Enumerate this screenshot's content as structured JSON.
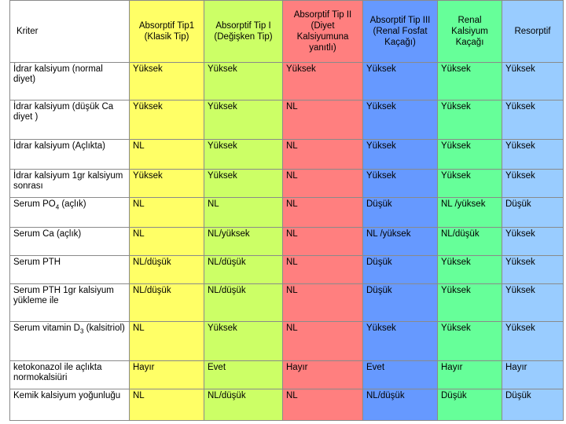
{
  "colors": {
    "col_yellow": "#ffff66",
    "col_lime": "#ccff66",
    "col_red": "#ff7f7f",
    "col_blue": "#6699ff",
    "col_green": "#66ff99",
    "col_lightblue": "#99ccff"
  },
  "headers": [
    "Kriter",
    "Absorptif Tip1 (Klasik Tip)",
    "Absorptif Tip I (Değişken Tip)",
    "Absorptif Tip II (Diyet Kalsiyumuna yanıtlı)",
    "Absorptif Tip III (Renal Fosfat Kaçağı)",
    "Renal Kalsiyum Kaçağı",
    "Resorptif"
  ],
  "rows": [
    {
      "label": "İdrar kalsiyum (normal diyet)",
      "values": [
        "Yüksek",
        "Yüksek",
        "Yüksek",
        "Yüksek",
        "Yüksek",
        "Yüksek"
      ]
    },
    {
      "label": "İdrar kalsiyum (düşük Ca diyet )",
      "values": [
        "Yüksek",
        "Yüksek",
        "NL",
        "Yüksek",
        "Yüksek",
        "Yüksek"
      ]
    },
    {
      "label": "İdrar kalsiyum (Açlıkta)",
      "values": [
        "NL",
        "Yüksek",
        "NL",
        "Yüksek",
        "Yüksek",
        "Yüksek"
      ]
    },
    {
      "label": "İdrar kalsiyum 1gr kalsiyum sonrası",
      "values": [
        "Yüksek",
        "Yüksek",
        "NL",
        "Yüksek",
        "Yüksek",
        "Yüksek"
      ]
    },
    {
      "label": "Serum PO",
      "label_sub": "4",
      "label_tail": " (açlık)",
      "values": [
        "NL",
        "NL",
        "NL",
        "Düşük",
        "NL /yüksek",
        "Düşük"
      ]
    },
    {
      "label": "Serum Ca (açlık)",
      "values": [
        "NL",
        "NL/yüksek",
        "NL",
        "NL /yüksek",
        "NL/düşük",
        "Yüksek"
      ]
    },
    {
      "label": "Serum PTH",
      "values": [
        "NL/düşük",
        "NL/düşük",
        "NL",
        "Düşük",
        "Yüksek",
        "Yüksek"
      ]
    },
    {
      "label": "Serum PTH 1gr kalsiyum yükleme ile",
      "values": [
        "NL/düşük",
        "NL/düşük",
        "NL",
        "Düşük",
        "Yüksek",
        "Yüksek"
      ]
    },
    {
      "label": "Serum vitamin D",
      "label_sub": "3",
      "label_tail": " (kalsitriol)",
      "values": [
        "NL",
        "Yüksek",
        "NL",
        "Yüksek",
        "Yüksek",
        "Yüksek"
      ]
    },
    {
      "label": "ketokonazol ile açlıkta normokalsiüri",
      "values": [
        "Hayır",
        "Evet",
        "Hayır",
        "Evet",
        "Hayır",
        "Hayır"
      ]
    },
    {
      "label": "Kemik kalsiyum yoğunluğu",
      "values": [
        "NL",
        "NL/düşük",
        "NL",
        "NL/düşük",
        "Düşük",
        "Düşük"
      ]
    }
  ]
}
